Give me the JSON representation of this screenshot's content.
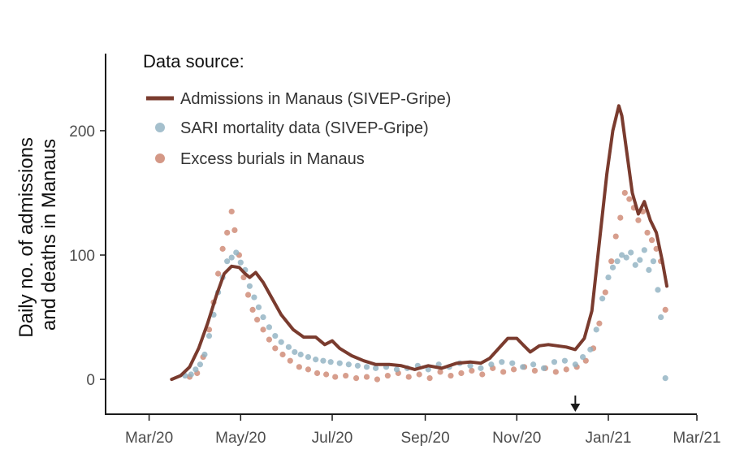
{
  "chart_data": {
    "type": "line",
    "title": "",
    "xlabel": "",
    "ylabel": "Daily no. of admissions and deaths in Manaus",
    "ylabel_lines": [
      "Daily no. of admissions",
      "and deaths in Manaus"
    ],
    "xlim": [
      "2020-02-01",
      "2021-03-01"
    ],
    "ylim": [
      -28,
      262
    ],
    "x_ticks": [
      {
        "date": "2020-03-01",
        "label": "Mar/20"
      },
      {
        "date": "2020-05-01",
        "label": "May/20"
      },
      {
        "date": "2020-07-01",
        "label": "Jul/20"
      },
      {
        "date": "2020-09-01",
        "label": "Sep/20"
      },
      {
        "date": "2020-11-01",
        "label": "Nov/20"
      },
      {
        "date": "2021-01-01",
        "label": "Jan/21"
      },
      {
        "date": "2021-03-01",
        "label": "Mar/21"
      }
    ],
    "y_ticks": [
      0,
      100,
      200
    ],
    "annotation": {
      "type": "arrow",
      "date": "2020-12-10"
    },
    "legend": {
      "title": "Data source:",
      "placement": "top-left",
      "entries": [
        "Admissions in Manaus (SIVEP-Gripe)",
        "SARI mortality data (SIVEP-Gripe)",
        "Excess burials in Manaus"
      ]
    },
    "grid": false,
    "colors": {
      "admissions": "#7a3b2e",
      "sari": "#8fb0c0",
      "burials": "#cd8671"
    },
    "series": [
      {
        "name": "Admissions in Manaus (SIVEP-Gripe)",
        "kind": "line",
        "points": [
          [
            "2020-03-16",
            0
          ],
          [
            "2020-03-22",
            3
          ],
          [
            "2020-03-28",
            10
          ],
          [
            "2020-04-03",
            25
          ],
          [
            "2020-04-09",
            45
          ],
          [
            "2020-04-15",
            68
          ],
          [
            "2020-04-20",
            85
          ],
          [
            "2020-04-25",
            91
          ],
          [
            "2020-04-30",
            90
          ],
          [
            "2020-05-04",
            85
          ],
          [
            "2020-05-07",
            82
          ],
          [
            "2020-05-11",
            86
          ],
          [
            "2020-05-16",
            78
          ],
          [
            "2020-05-22",
            65
          ],
          [
            "2020-05-28",
            52
          ],
          [
            "2020-06-05",
            40
          ],
          [
            "2020-06-12",
            34
          ],
          [
            "2020-06-20",
            34
          ],
          [
            "2020-06-26",
            28
          ],
          [
            "2020-07-01",
            31
          ],
          [
            "2020-07-06",
            25
          ],
          [
            "2020-07-14",
            19
          ],
          [
            "2020-07-22",
            15
          ],
          [
            "2020-07-30",
            12
          ],
          [
            "2020-08-08",
            12
          ],
          [
            "2020-08-16",
            11
          ],
          [
            "2020-08-25",
            8
          ],
          [
            "2020-09-03",
            11
          ],
          [
            "2020-09-12",
            9
          ],
          [
            "2020-09-22",
            13
          ],
          [
            "2020-10-01",
            14
          ],
          [
            "2020-10-08",
            13
          ],
          [
            "2020-10-14",
            17
          ],
          [
            "2020-10-20",
            25
          ],
          [
            "2020-10-26",
            33
          ],
          [
            "2020-11-01",
            33
          ],
          [
            "2020-11-05",
            28
          ],
          [
            "2020-11-10",
            22
          ],
          [
            "2020-11-16",
            27
          ],
          [
            "2020-11-22",
            28
          ],
          [
            "2020-11-28",
            27
          ],
          [
            "2020-12-04",
            26
          ],
          [
            "2020-12-10",
            24
          ],
          [
            "2020-12-16",
            33
          ],
          [
            "2020-12-21",
            55
          ],
          [
            "2020-12-26",
            110
          ],
          [
            "2020-12-31",
            165
          ],
          [
            "2021-01-04",
            200
          ],
          [
            "2021-01-08",
            220
          ],
          [
            "2021-01-10",
            212
          ],
          [
            "2021-01-13",
            185
          ],
          [
            "2021-01-17",
            150
          ],
          [
            "2021-01-21",
            133
          ],
          [
            "2021-01-25",
            143
          ],
          [
            "2021-01-29",
            128
          ],
          [
            "2021-02-02",
            118
          ],
          [
            "2021-02-06",
            95
          ],
          [
            "2021-02-09",
            75
          ]
        ]
      },
      {
        "name": "SARI mortality data (SIVEP-Gripe)",
        "kind": "scatter",
        "points": [
          [
            "2020-03-25",
            3
          ],
          [
            "2020-03-29",
            4
          ],
          [
            "2020-04-01",
            8
          ],
          [
            "2020-04-04",
            12
          ],
          [
            "2020-04-07",
            20
          ],
          [
            "2020-04-10",
            35
          ],
          [
            "2020-04-13",
            52
          ],
          [
            "2020-04-16",
            70
          ],
          [
            "2020-04-19",
            82
          ],
          [
            "2020-04-22",
            95
          ],
          [
            "2020-04-25",
            98
          ],
          [
            "2020-04-28",
            102
          ],
          [
            "2020-05-01",
            94
          ],
          [
            "2020-05-04",
            88
          ],
          [
            "2020-05-07",
            75
          ],
          [
            "2020-05-10",
            66
          ],
          [
            "2020-05-13",
            58
          ],
          [
            "2020-05-16",
            50
          ],
          [
            "2020-05-20",
            42
          ],
          [
            "2020-05-24",
            35
          ],
          [
            "2020-05-28",
            30
          ],
          [
            "2020-06-02",
            26
          ],
          [
            "2020-06-06",
            22
          ],
          [
            "2020-06-10",
            20
          ],
          [
            "2020-06-15",
            18
          ],
          [
            "2020-06-20",
            16
          ],
          [
            "2020-06-25",
            15
          ],
          [
            "2020-06-30",
            14
          ],
          [
            "2020-07-06",
            13
          ],
          [
            "2020-07-12",
            12
          ],
          [
            "2020-07-18",
            11
          ],
          [
            "2020-07-24",
            10
          ],
          [
            "2020-07-30",
            9
          ],
          [
            "2020-08-06",
            10
          ],
          [
            "2020-08-13",
            8
          ],
          [
            "2020-08-20",
            9
          ],
          [
            "2020-08-27",
            11
          ],
          [
            "2020-09-03",
            8
          ],
          [
            "2020-09-10",
            12
          ],
          [
            "2020-09-17",
            10
          ],
          [
            "2020-09-24",
            13
          ],
          [
            "2020-10-01",
            11
          ],
          [
            "2020-10-08",
            9
          ],
          [
            "2020-10-15",
            12
          ],
          [
            "2020-10-22",
            14
          ],
          [
            "2020-10-29",
            13
          ],
          [
            "2020-11-05",
            10
          ],
          [
            "2020-11-12",
            12
          ],
          [
            "2020-11-19",
            9
          ],
          [
            "2020-11-26",
            14
          ],
          [
            "2020-12-03",
            15
          ],
          [
            "2020-12-10",
            12
          ],
          [
            "2020-12-15",
            18
          ],
          [
            "2020-12-20",
            24
          ],
          [
            "2020-12-24",
            40
          ],
          [
            "2020-12-28",
            65
          ],
          [
            "2021-01-01",
            82
          ],
          [
            "2021-01-04",
            90
          ],
          [
            "2021-01-07",
            95
          ],
          [
            "2021-01-10",
            100
          ],
          [
            "2021-01-13",
            98
          ],
          [
            "2021-01-16",
            102
          ],
          [
            "2021-01-19",
            92
          ],
          [
            "2021-01-22",
            96
          ],
          [
            "2021-01-25",
            104
          ],
          [
            "2021-01-28",
            88
          ],
          [
            "2021-01-31",
            95
          ],
          [
            "2021-02-03",
            72
          ],
          [
            "2021-02-05",
            50
          ],
          [
            "2021-02-08",
            1
          ]
        ]
      },
      {
        "name": "Excess burials in Manaus",
        "kind": "scatter",
        "points": [
          [
            "2020-03-28",
            2
          ],
          [
            "2020-04-02",
            5
          ],
          [
            "2020-04-06",
            18
          ],
          [
            "2020-04-10",
            40
          ],
          [
            "2020-04-13",
            62
          ],
          [
            "2020-04-16",
            85
          ],
          [
            "2020-04-19",
            105
          ],
          [
            "2020-04-22",
            118
          ],
          [
            "2020-04-25",
            135
          ],
          [
            "2020-04-27",
            120
          ],
          [
            "2020-04-30",
            100
          ],
          [
            "2020-05-03",
            82
          ],
          [
            "2020-05-06",
            68
          ],
          [
            "2020-05-09",
            56
          ],
          [
            "2020-05-12",
            48
          ],
          [
            "2020-05-16",
            40
          ],
          [
            "2020-05-20",
            32
          ],
          [
            "2020-05-24",
            25
          ],
          [
            "2020-05-29",
            20
          ],
          [
            "2020-06-03",
            15
          ],
          [
            "2020-06-09",
            10
          ],
          [
            "2020-06-15",
            8
          ],
          [
            "2020-06-21",
            5
          ],
          [
            "2020-06-27",
            4
          ],
          [
            "2020-07-03",
            2
          ],
          [
            "2020-07-10",
            3
          ],
          [
            "2020-07-17",
            1
          ],
          [
            "2020-07-24",
            2
          ],
          [
            "2020-07-31",
            0
          ],
          [
            "2020-08-07",
            3
          ],
          [
            "2020-08-14",
            5
          ],
          [
            "2020-08-21",
            2
          ],
          [
            "2020-08-28",
            4
          ],
          [
            "2020-09-04",
            1
          ],
          [
            "2020-09-11",
            6
          ],
          [
            "2020-09-18",
            3
          ],
          [
            "2020-09-25",
            5
          ],
          [
            "2020-10-02",
            7
          ],
          [
            "2020-10-09",
            4
          ],
          [
            "2020-10-16",
            9
          ],
          [
            "2020-10-23",
            6
          ],
          [
            "2020-10-30",
            8
          ],
          [
            "2020-11-06",
            10
          ],
          [
            "2020-11-13",
            7
          ],
          [
            "2020-11-20",
            9
          ],
          [
            "2020-11-27",
            6
          ],
          [
            "2020-12-04",
            8
          ],
          [
            "2020-12-11",
            10
          ],
          [
            "2020-12-17",
            15
          ],
          [
            "2020-12-22",
            25
          ],
          [
            "2020-12-26",
            45
          ],
          [
            "2020-12-30",
            70
          ],
          [
            "2021-01-03",
            95
          ],
          [
            "2021-01-06",
            115
          ],
          [
            "2021-01-09",
            130
          ],
          [
            "2021-01-12",
            150
          ],
          [
            "2021-01-15",
            145
          ],
          [
            "2021-01-18",
            138
          ],
          [
            "2021-01-21",
            128
          ],
          [
            "2021-01-24",
            135
          ],
          [
            "2021-01-27",
            118
          ],
          [
            "2021-01-30",
            112
          ],
          [
            "2021-02-02",
            105
          ],
          [
            "2021-02-05",
            95
          ],
          [
            "2021-02-08",
            56
          ]
        ]
      }
    ]
  }
}
